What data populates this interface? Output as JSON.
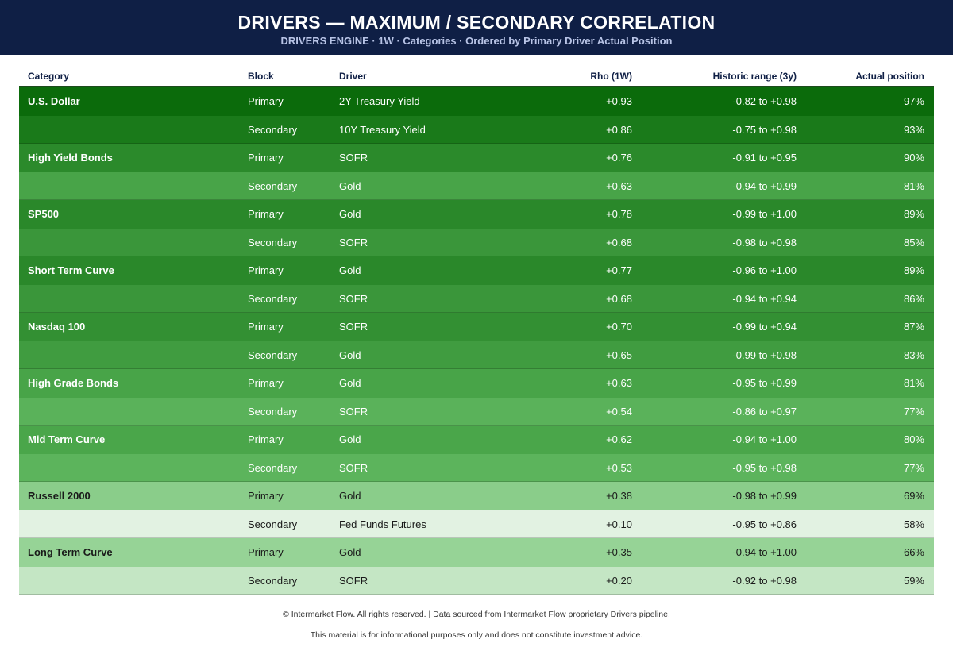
{
  "header": {
    "title": "DRIVERS — MAXIMUM / SECONDARY CORRELATION",
    "subtitle": "DRIVERS ENGINE · 1W · Categories · Ordered by Primary Driver Actual Position"
  },
  "columns": {
    "category": "Category",
    "block": "Block",
    "driver": "Driver",
    "rho": "Rho (1W)",
    "range": "Historic range (3y)",
    "position": "Actual position"
  },
  "rows": [
    {
      "category": "U.S. Dollar",
      "block": "Primary",
      "driver": "2Y Treasury Yield",
      "rho": "+0.93",
      "range": "-0.82 to +0.98",
      "position": "97%",
      "bg": "#0b6b0b",
      "fg": "#ffffff"
    },
    {
      "category": "",
      "block": "Secondary",
      "driver": "10Y Treasury Yield",
      "rho": "+0.86",
      "range": "-0.75 to +0.98",
      "position": "93%",
      "bg": "#1a7a1a",
      "fg": "#ffffff"
    },
    {
      "category": "High Yield Bonds",
      "block": "Primary",
      "driver": "SOFR",
      "rho": "+0.76",
      "range": "-0.91 to +0.95",
      "position": "90%",
      "bg": "#2b8a2b",
      "fg": "#ffffff"
    },
    {
      "category": "",
      "block": "Secondary",
      "driver": "Gold",
      "rho": "+0.63",
      "range": "-0.94 to +0.99",
      "position": "81%",
      "bg": "#48a448",
      "fg": "#ffffff"
    },
    {
      "category": "SP500",
      "block": "Primary",
      "driver": "Gold",
      "rho": "+0.78",
      "range": "-0.99 to +1.00",
      "position": "89%",
      "bg": "#2a882a",
      "fg": "#ffffff"
    },
    {
      "category": "",
      "block": "Secondary",
      "driver": "SOFR",
      "rho": "+0.68",
      "range": "-0.98 to +0.98",
      "position": "85%",
      "bg": "#3a963a",
      "fg": "#ffffff"
    },
    {
      "category": "Short Term Curve",
      "block": "Primary",
      "driver": "Gold",
      "rho": "+0.77",
      "range": "-0.96 to +1.00",
      "position": "89%",
      "bg": "#2a882a",
      "fg": "#ffffff"
    },
    {
      "category": "",
      "block": "Secondary",
      "driver": "SOFR",
      "rho": "+0.68",
      "range": "-0.94 to +0.94",
      "position": "86%",
      "bg": "#3a963a",
      "fg": "#ffffff"
    },
    {
      "category": "Nasdaq 100",
      "block": "Primary",
      "driver": "SOFR",
      "rho": "+0.70",
      "range": "-0.99 to +0.94",
      "position": "87%",
      "bg": "#339033",
      "fg": "#ffffff"
    },
    {
      "category": "",
      "block": "Secondary",
      "driver": "Gold",
      "rho": "+0.65",
      "range": "-0.99 to +0.98",
      "position": "83%",
      "bg": "#409c40",
      "fg": "#ffffff"
    },
    {
      "category": "High Grade Bonds",
      "block": "Primary",
      "driver": "Gold",
      "rho": "+0.63",
      "range": "-0.95 to +0.99",
      "position": "81%",
      "bg": "#48a448",
      "fg": "#ffffff"
    },
    {
      "category": "",
      "block": "Secondary",
      "driver": "SOFR",
      "rho": "+0.54",
      "range": "-0.86 to +0.97",
      "position": "77%",
      "bg": "#5ab25a",
      "fg": "#ffffff"
    },
    {
      "category": "Mid Term Curve",
      "block": "Primary",
      "driver": "Gold",
      "rho": "+0.62",
      "range": "-0.94 to +1.00",
      "position": "80%",
      "bg": "#4aa64a",
      "fg": "#ffffff"
    },
    {
      "category": "",
      "block": "Secondary",
      "driver": "SOFR",
      "rho": "+0.53",
      "range": "-0.95 to +0.98",
      "position": "77%",
      "bg": "#5cb45c",
      "fg": "#ffffff"
    },
    {
      "category": "Russell 2000",
      "block": "Primary",
      "driver": "Gold",
      "rho": "+0.38",
      "range": "-0.98 to +0.99",
      "position": "69%",
      "bg": "#8acd8a",
      "fg": "#1a1a1a"
    },
    {
      "category": "",
      "block": "Secondary",
      "driver": "Fed Funds Futures",
      "rho": "+0.10",
      "range": "-0.95 to +0.86",
      "position": "58%",
      "bg": "#e2f2e2",
      "fg": "#1a1a1a"
    },
    {
      "category": "Long Term Curve",
      "block": "Primary",
      "driver": "Gold",
      "rho": "+0.35",
      "range": "-0.94 to +1.00",
      "position": "66%",
      "bg": "#96d396",
      "fg": "#1a1a1a"
    },
    {
      "category": "",
      "block": "Secondary",
      "driver": "SOFR",
      "rho": "+0.20",
      "range": "-0.92 to +0.98",
      "position": "59%",
      "bg": "#c4e6c4",
      "fg": "#1a1a1a"
    }
  ],
  "footer": {
    "line1": "© Intermarket Flow. All rights reserved.  |  Data sourced from Intermarket Flow proprietary Drivers pipeline.",
    "line2": "This material is for informational purposes only and does not constitute investment advice."
  }
}
